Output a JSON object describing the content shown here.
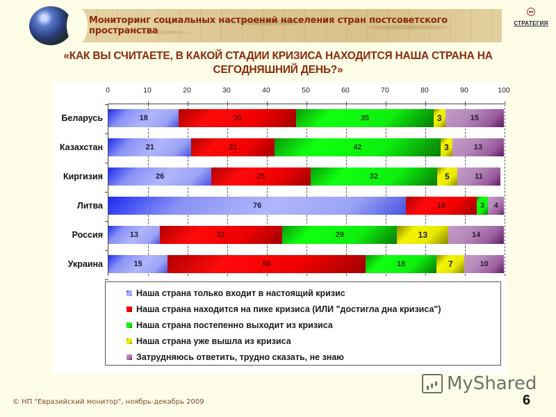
{
  "header": {
    "banner_title": "Мониторинг  социальных настроений населения стран постсоветского пространства",
    "logo_text": "СТРАТЕГИЯ"
  },
  "question": {
    "line1": "«КАК ВЫ СЧИТАЕТЕ, В КАКОЙ СТАДИИ КРИЗИСА НАХОДИТСЯ НАША СТРАНА НА",
    "line2": "СЕГОДНЯШНИЙ ДЕНЬ?»"
  },
  "chart_data": {
    "type": "bar",
    "orientation": "horizontal",
    "stacked": true,
    "title": "«КАК ВЫ СЧИТАЕТЕ, В КАКОЙ СТАДИИ КРИЗИСА НАХОДИТСЯ НАША СТРАНА НА СЕГОДНЯШНИЙ ДЕНЬ?»",
    "xlabel": "",
    "ylabel": "",
    "xlim": [
      0,
      100
    ],
    "x_ticks": [
      "0",
      "10",
      "20",
      "30",
      "40",
      "50",
      "60",
      "70",
      "80",
      "90",
      "100"
    ],
    "grid": "vertical dashed",
    "legend_position": "bottom",
    "categories": [
      "Беларусь",
      "Казахстан",
      "Киргизия",
      "Литва",
      "Россия",
      "Украина"
    ],
    "series": [
      {
        "name": "Наша страна только входит в настоящий кризис",
        "color": "#9aa2f6",
        "values": [
          18,
          21,
          26,
          76,
          13,
          15
        ]
      },
      {
        "name": "Наша страна находится на пике кризиса (ИЛИ \"достигла дна кризиса\")",
        "color": "#ff0000",
        "values": [
          30,
          21,
          25,
          18,
          31,
          50
        ]
      },
      {
        "name": "Наша страна постепенно выходит из кризиса",
        "color": "#10f010",
        "values": [
          35,
          42,
          32,
          3,
          29,
          18
        ]
      },
      {
        "name": "Наша страна уже вышла из кризиса",
        "color": "#e8e800",
        "values": [
          3,
          3,
          5,
          0,
          13,
          7
        ]
      },
      {
        "name": "Затрудняюсь ответить, трудно сказать, не знаю",
        "color": "#9a5c9e",
        "values": [
          15,
          13,
          11,
          4,
          14,
          10
        ]
      }
    ]
  },
  "footer": {
    "copyright": "© НП \"Евразийский монитор\", ноябрь-декабрь 2009",
    "watermark": "MyShared",
    "page_number": "6"
  }
}
